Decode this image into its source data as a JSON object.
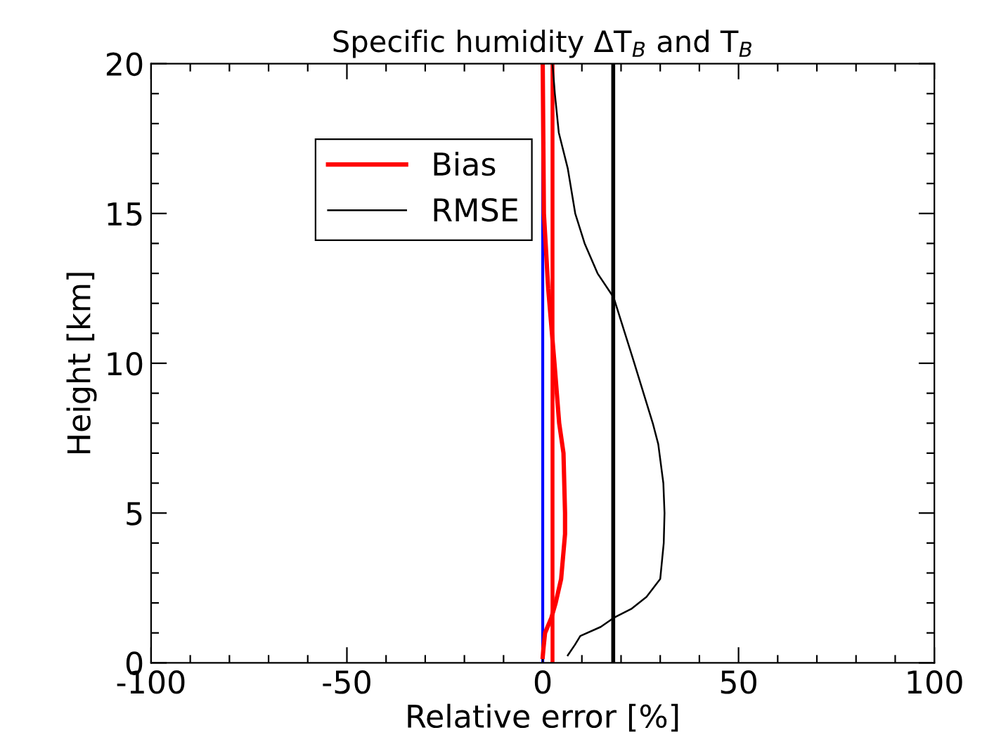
{
  "chart_data": {
    "type": "line",
    "title": "Specific humidity ΔT$_{B}$ and T$_{B}$",
    "xlabel": "Relative error [%]",
    "ylabel": "Height [km]",
    "xlim": [
      -100,
      100
    ],
    "ylim": [
      0,
      20
    ],
    "xticks": [
      -100,
      {
        "value": -90,
        "label": null
      },
      {
        "value": -80,
        "label": null
      },
      {
        "value": -70,
        "label": null
      },
      {
        "value": -60,
        "label": null
      },
      -50,
      {
        "value": -40,
        "label": null
      },
      {
        "value": -30,
        "label": null
      },
      {
        "value": -20,
        "label": null
      },
      {
        "value": -10,
        "label": null
      },
      0,
      {
        "value": 10,
        "label": null
      },
      {
        "value": 20,
        "label": null
      },
      {
        "value": 30,
        "label": null
      },
      {
        "value": 40,
        "label": null
      },
      50,
      {
        "value": 60,
        "label": null
      },
      {
        "value": 70,
        "label": null
      },
      {
        "value": 80,
        "label": null
      },
      {
        "value": 90,
        "label": null
      },
      100
    ],
    "yticks": [
      0,
      {
        "value": 1,
        "label": null
      },
      {
        "value": 2,
        "label": null
      },
      {
        "value": 3,
        "label": null
      },
      {
        "value": 4,
        "label": null
      },
      5,
      {
        "value": 6,
        "label": null
      },
      {
        "value": 7,
        "label": null
      },
      {
        "value": 8,
        "label": null
      },
      {
        "value": 9,
        "label": null
      },
      10,
      {
        "value": 11,
        "label": null
      },
      {
        "value": 12,
        "label": null
      },
      {
        "value": 13,
        "label": null
      },
      {
        "value": 14,
        "label": null
      },
      15,
      {
        "value": 16,
        "label": null
      },
      {
        "value": 17,
        "label": null
      },
      {
        "value": 18,
        "label": null
      },
      {
        "value": 19,
        "label": null
      },
      20
    ],
    "series": [
      {
        "name": "Bias",
        "color": "#ff0000",
        "x": [
          0,
          0.3,
          1.4,
          3.0,
          4.2,
          5.3,
          5.7,
          5.7,
          4.7,
          3.3,
          2.2,
          0.6,
          0.2,
          0
        ],
        "values": [
          20,
          15,
          12.5,
          10,
          8,
          7,
          5,
          4.3,
          2.8,
          2,
          1.5,
          1,
          0.5,
          0.2
        ]
      },
      {
        "name": "RMSE",
        "color": "#000000",
        "x": [
          2.5,
          3.1,
          4.1,
          6.4,
          8.3,
          10.7,
          14.0,
          18.1,
          23.4,
          28.1,
          29.5,
          30.8,
          31.1,
          30.9,
          30.0,
          26.5,
          22.6,
          18.1,
          14.8,
          9.6,
          8.2,
          6.4
        ],
        "values": [
          20,
          19,
          17.7,
          16.5,
          15,
          14,
          13,
          12.2,
          10,
          8,
          7.3,
          6,
          5,
          4,
          2.8,
          2.2,
          1.8,
          1.5,
          1.2,
          0.9,
          0.6,
          0.25
        ]
      }
    ],
    "ref_lines": [
      {
        "axis": "x",
        "value": 0,
        "color": "#0000ff"
      },
      {
        "axis": "x",
        "value": 2.5,
        "color": "#ff0000"
      },
      {
        "axis": "x",
        "value": 18,
        "color": "#000000"
      }
    ],
    "legend": "top left",
    "grid": false
  }
}
